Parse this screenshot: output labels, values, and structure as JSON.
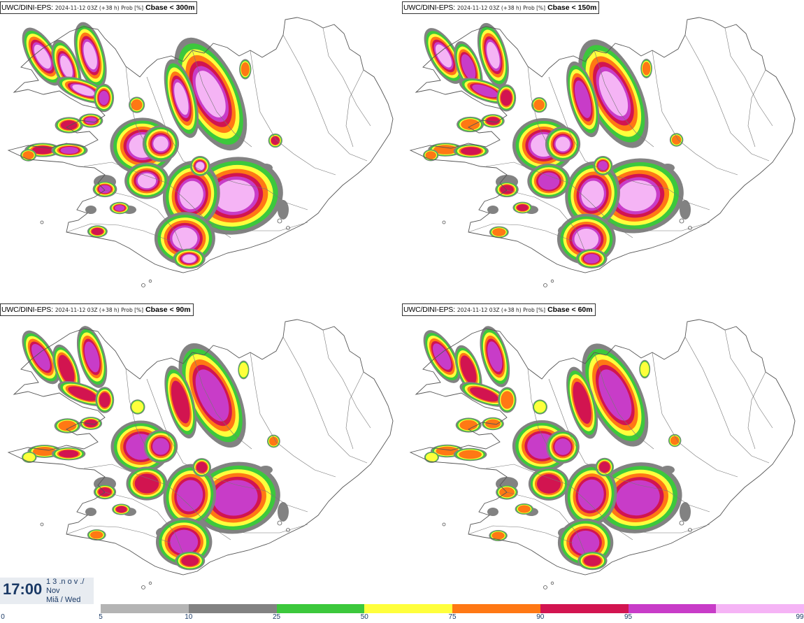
{
  "panels": [
    {
      "model": "UWC/DINI-EPS:",
      "meta": "2024-11-12 03Z (+38 h) Prob [%]",
      "variable": "Cbase < 300m",
      "intensity": 1.0
    },
    {
      "model": "UWC/DINI-EPS:",
      "meta": "2024-11-12 03Z (+38 h) Prob [%]",
      "variable": "Cbase < 150m",
      "intensity": 0.85
    },
    {
      "model": "UWC/DINI-EPS:",
      "meta": "2024-11-12 03Z (+38 h) Prob [%]",
      "variable": "Cbase < 90m",
      "intensity": 0.7
    },
    {
      "model": "UWC/DINI-EPS:",
      "meta": "2024-11-12 03Z (+38 h) Prob [%]",
      "variable": "Cbase < 60m",
      "intensity": 0.65
    }
  ],
  "time": {
    "clock": "17:00",
    "line1": "1 3 .n o v ./",
    "line2": "Nov",
    "line3": "Miă / Wed"
  },
  "colorbar": {
    "start_label": "0",
    "labels": [
      "5",
      "10",
      "25",
      "50",
      "75",
      "90",
      "95",
      "99"
    ],
    "colors": [
      "#b4b4b4",
      "#828282",
      "#3cc83c",
      "#ffff3c",
      "#ff7814",
      "#d21450",
      "#c83cc8",
      "#f5b4f5"
    ]
  }
}
